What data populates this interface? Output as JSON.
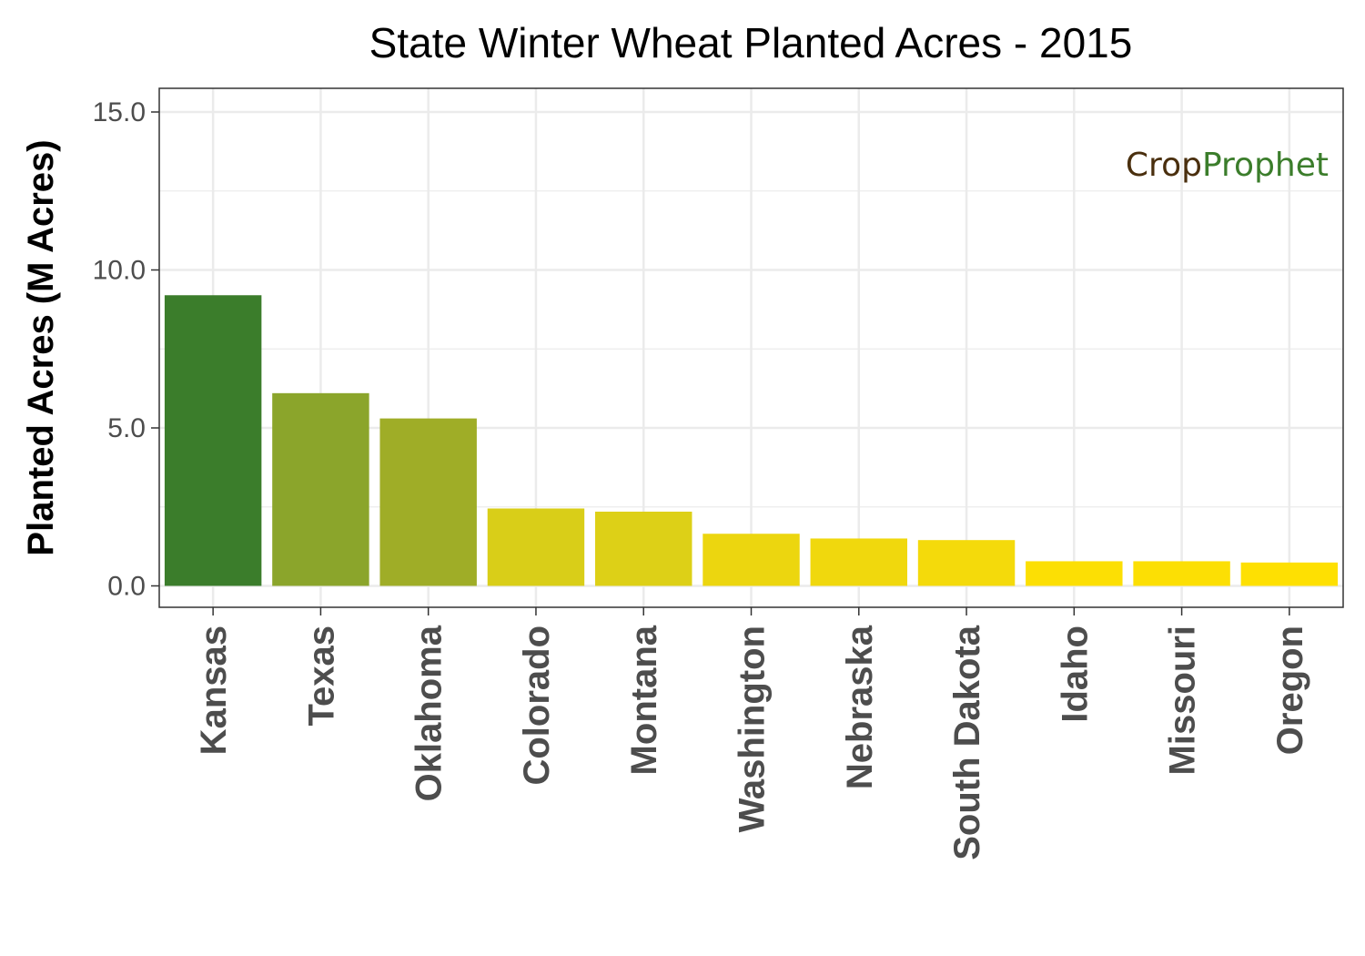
{
  "chart_data": {
    "type": "bar",
    "title": "State Winter Wheat Planted Acres - 2015",
    "xlabel": "",
    "ylabel": "Planted Acres (M Acres)",
    "ylim": [
      0,
      15.8
    ],
    "yticks": [
      "0.0",
      "5.0",
      "10.0",
      "15.0"
    ],
    "ytick_values": [
      0,
      5,
      10,
      15
    ],
    "grid": true,
    "legend": "none",
    "categories": [
      "Kansas",
      "Texas",
      "Oklahoma",
      "Colorado",
      "Montana",
      "Washington",
      "Nebraska",
      "South Dakota",
      "Idaho",
      "Missouri",
      "Oregon"
    ],
    "values": [
      9.2,
      6.1,
      5.3,
      2.45,
      2.35,
      1.65,
      1.5,
      1.45,
      0.78,
      0.78,
      0.74
    ],
    "colors": [
      "#3b7d2b",
      "#8ba52b",
      "#9fad27",
      "#d9ce18",
      "#ddd017",
      "#ecd60f",
      "#f0d80d",
      "#f4da0b",
      "#fcdf04",
      "#fcdf04",
      "#fee002"
    ]
  },
  "logo": {
    "part1": "Cr",
    "part2": "o",
    "part3": "p",
    "part4": "Prophet",
    "dark_color": "#4a2f0e",
    "green_color": "#3b7d2b"
  }
}
